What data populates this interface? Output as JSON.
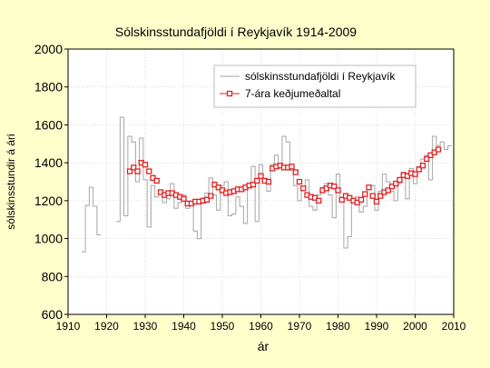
{
  "chart_data": {
    "type": "line",
    "title": "Sólskinsstundafjöldi í Reykjavík 1914-2009",
    "xlabel": "ár",
    "ylabel": "sólskinsstundir á ári",
    "xlim": [
      1910,
      2010
    ],
    "ylim": [
      600,
      2000
    ],
    "xticks": [
      1910,
      1920,
      1930,
      1940,
      1950,
      1960,
      1970,
      1980,
      1990,
      2000,
      2010
    ],
    "yticks": [
      600,
      800,
      1000,
      1200,
      1400,
      1600,
      1800,
      2000
    ],
    "grid": true,
    "legend_position": "top-right",
    "colors": {
      "background": "#ffffcc",
      "plot_background": "#ffffff",
      "annual_series": "#a6a6a6",
      "moving_average": "#e02020",
      "grid": "#c8c8c8"
    },
    "series": [
      {
        "name": "sólskinsstundafjöldi í Reykjavík",
        "style": "step",
        "x": [
          1914,
          1915,
          1916,
          1917,
          1918,
          1923,
          1924,
          1925,
          1926,
          1927,
          1928,
          1929,
          1930,
          1931,
          1932,
          1933,
          1934,
          1935,
          1936,
          1937,
          1938,
          1939,
          1940,
          1941,
          1942,
          1943,
          1944,
          1945,
          1946,
          1947,
          1948,
          1949,
          1950,
          1951,
          1952,
          1953,
          1954,
          1955,
          1956,
          1957,
          1958,
          1959,
          1960,
          1961,
          1962,
          1963,
          1964,
          1965,
          1966,
          1967,
          1968,
          1969,
          1970,
          1971,
          1972,
          1973,
          1974,
          1975,
          1976,
          1977,
          1978,
          1979,
          1980,
          1981,
          1982,
          1983,
          1984,
          1985,
          1986,
          1987,
          1988,
          1989,
          1990,
          1991,
          1992,
          1993,
          1994,
          1995,
          1996,
          1997,
          1998,
          1999,
          2000,
          2001,
          2002,
          2003,
          2004,
          2005,
          2006,
          2007,
          2008,
          2009
        ],
        "values": [
          930,
          1175,
          1270,
          1170,
          1020,
          1090,
          1640,
          1120,
          1540,
          1510,
          1300,
          1530,
          1310,
          1060,
          1280,
          1220,
          1250,
          1190,
          1210,
          1290,
          1160,
          1190,
          1230,
          1160,
          1180,
          1040,
          1000,
          1200,
          1240,
          1320,
          1230,
          1150,
          1280,
          1300,
          1120,
          1130,
          1220,
          1170,
          1080,
          1270,
          1380,
          1090,
          1390,
          1310,
          1250,
          1390,
          1440,
          1380,
          1540,
          1510,
          1360,
          1280,
          1200,
          1270,
          1310,
          1170,
          1150,
          1230,
          1270,
          1290,
          1230,
          1110,
          1340,
          1200,
          950,
          1010,
          1200,
          1220,
          1140,
          1170,
          1260,
          1280,
          1150,
          1250,
          1340,
          1300,
          1250,
          1200,
          1290,
          1350,
          1210,
          1370,
          1290,
          1380,
          1420,
          1440,
          1310,
          1540,
          1490,
          1510,
          1470,
          1490
        ]
      },
      {
        "name": "7-ára keðjumeðaltal",
        "style": "markers",
        "x": [
          1926,
          1927,
          1928,
          1929,
          1930,
          1931,
          1932,
          1933,
          1934,
          1935,
          1936,
          1937,
          1938,
          1939,
          1940,
          1941,
          1942,
          1943,
          1944,
          1945,
          1946,
          1947,
          1948,
          1949,
          1950,
          1951,
          1952,
          1953,
          1954,
          1955,
          1956,
          1957,
          1958,
          1959,
          1960,
          1961,
          1962,
          1963,
          1964,
          1965,
          1966,
          1967,
          1968,
          1969,
          1970,
          1971,
          1972,
          1973,
          1974,
          1975,
          1976,
          1977,
          1978,
          1979,
          1980,
          1981,
          1982,
          1983,
          1984,
          1985,
          1986,
          1987,
          1988,
          1989,
          1990,
          1991,
          1992,
          1993,
          1994,
          1995,
          1996,
          1997,
          1998,
          1999,
          2000,
          2001,
          2002,
          2003,
          2004,
          2005,
          2006
        ],
        "values": [
          1355,
          1375,
          1355,
          1400,
          1390,
          1355,
          1320,
          1305,
          1245,
          1230,
          1240,
          1240,
          1230,
          1220,
          1210,
          1185,
          1185,
          1195,
          1195,
          1200,
          1205,
          1225,
          1285,
          1270,
          1255,
          1240,
          1245,
          1250,
          1260,
          1260,
          1270,
          1280,
          1285,
          1305,
          1330,
          1305,
          1300,
          1370,
          1380,
          1385,
          1375,
          1375,
          1380,
          1350,
          1300,
          1265,
          1230,
          1220,
          1215,
          1200,
          1255,
          1265,
          1280,
          1275,
          1255,
          1205,
          1225,
          1215,
          1200,
          1190,
          1205,
          1235,
          1270,
          1225,
          1195,
          1225,
          1245,
          1255,
          1275,
          1290,
          1310,
          1335,
          1330,
          1345,
          1340,
          1365,
          1385,
          1420,
          1440,
          1455,
          1470
        ]
      }
    ]
  }
}
